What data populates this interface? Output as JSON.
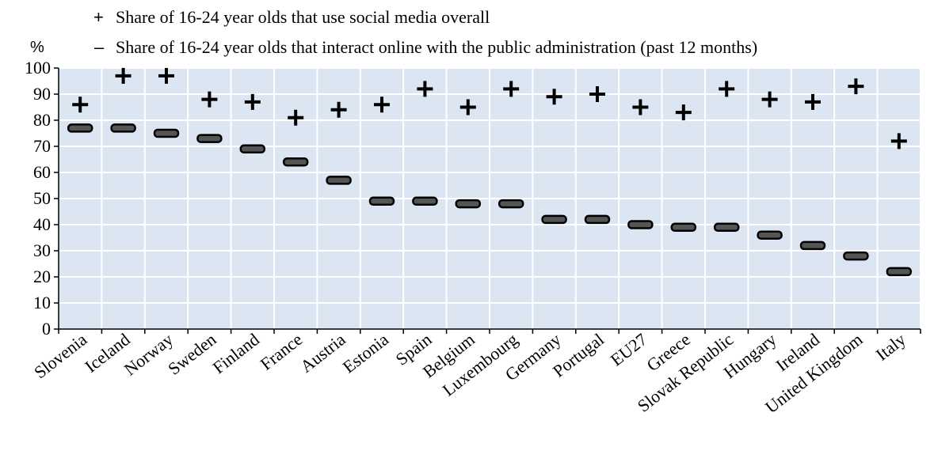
{
  "chart_data": {
    "type": "scatter",
    "title": "",
    "xlabel": "",
    "ylabel": "%",
    "ylim": [
      0,
      100
    ],
    "yticks": [
      "0",
      "10",
      "20",
      "30",
      "40",
      "50",
      "60",
      "70",
      "80",
      "90",
      "100"
    ],
    "grid": true,
    "legend_position": "top",
    "categories": [
      "Slovenia",
      "Iceland",
      "Norway",
      "Sweden",
      "Finland",
      "France",
      "Austria",
      "Estonia",
      "Spain",
      "Belgium",
      "Luxembourg",
      "Germany",
      "Portugal",
      "EU27",
      "Greece",
      "Slovak Republic",
      "Hungary",
      "Ireland",
      "United Kingdom",
      "Italy"
    ],
    "series": [
      {
        "name": "Share of 16-24 year olds that use social media overall",
        "marker": "+",
        "marker_symbol": "plus",
        "values": [
          86,
          97,
          97,
          88,
          87,
          81,
          84,
          86,
          92,
          85,
          92,
          89,
          90,
          85,
          83,
          92,
          88,
          87,
          93,
          72
        ]
      },
      {
        "name": "Share of 16-24 year olds that interact online with the public administration (past 12 months)",
        "marker": "–",
        "marker_symbol": "dash",
        "values": [
          77,
          77,
          75,
          73,
          69,
          64,
          57,
          49,
          49,
          48,
          48,
          42,
          42,
          40,
          39,
          39,
          36,
          32,
          28,
          22
        ]
      }
    ],
    "colors": {
      "plot_background": "#dce6f2",
      "gridline": "#ffffff",
      "marker": "#000000"
    }
  }
}
